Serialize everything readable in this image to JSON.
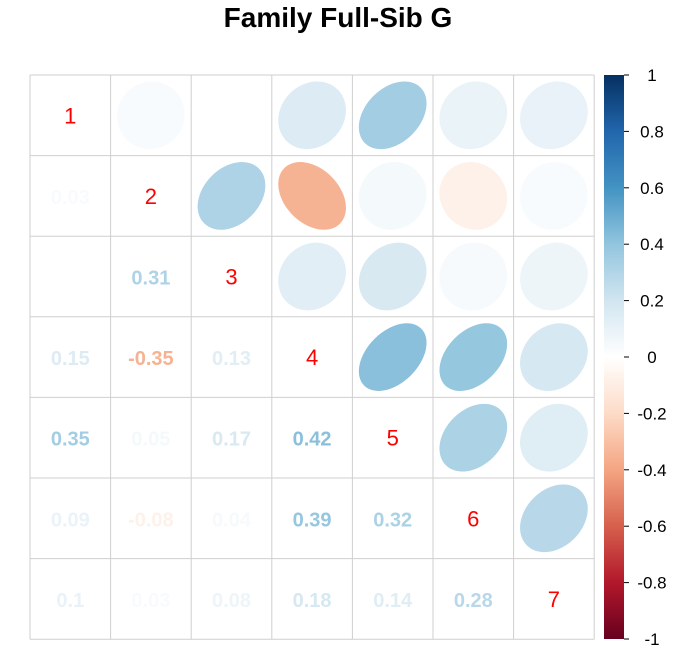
{
  "chart_data": {
    "type": "heatmap",
    "title": "Family Full-Sib G",
    "variables": [
      "1",
      "2",
      "3",
      "4",
      "5",
      "6",
      "7"
    ],
    "matrix": [
      [
        1,
        0.03,
        0.0,
        0.15,
        0.35,
        0.09,
        0.1
      ],
      [
        0.03,
        1,
        0.31,
        -0.35,
        0.05,
        -0.08,
        0.03
      ],
      [
        0.0,
        0.31,
        1,
        0.13,
        0.17,
        0.04,
        0.08
      ],
      [
        0.15,
        -0.35,
        0.13,
        1,
        0.42,
        0.39,
        0.18
      ],
      [
        0.35,
        0.05,
        0.17,
        0.42,
        1,
        0.32,
        0.14
      ],
      [
        0.09,
        -0.08,
        0.04,
        0.39,
        0.32,
        1,
        0.28
      ],
      [
        0.1,
        0.03,
        0.08,
        0.18,
        0.14,
        0.28,
        1
      ]
    ],
    "lower_labels": [
      [
        "0.03"
      ],
      [
        "0",
        "0.31"
      ],
      [
        "0.15",
        "-0.35",
        "0.13"
      ],
      [
        "0.35",
        "0.05",
        "0.17",
        "0.42"
      ],
      [
        "0.09",
        "-0.08",
        "0.04",
        "0.39",
        "0.32"
      ],
      [
        "0.1",
        "0.03",
        "0.08",
        "0.18",
        "0.14",
        "0.28"
      ]
    ],
    "upper_method": "ellipse",
    "lower_method": "number",
    "diagonal_label_color": "#ff0000",
    "colorbar": {
      "range": [
        -1,
        1
      ],
      "ticks": [
        "1",
        "0.8",
        "0.6",
        "0.4",
        "0.2",
        "0",
        "-0.2",
        "-0.4",
        "-0.6",
        "-0.8",
        "-1"
      ],
      "palette": [
        "#67001F",
        "#B2182B",
        "#D6604D",
        "#F4A582",
        "#FDDBC7",
        "#FFFFFF",
        "#D1E5F0",
        "#92C5DE",
        "#4393C3",
        "#2166AC",
        "#053061"
      ]
    }
  }
}
